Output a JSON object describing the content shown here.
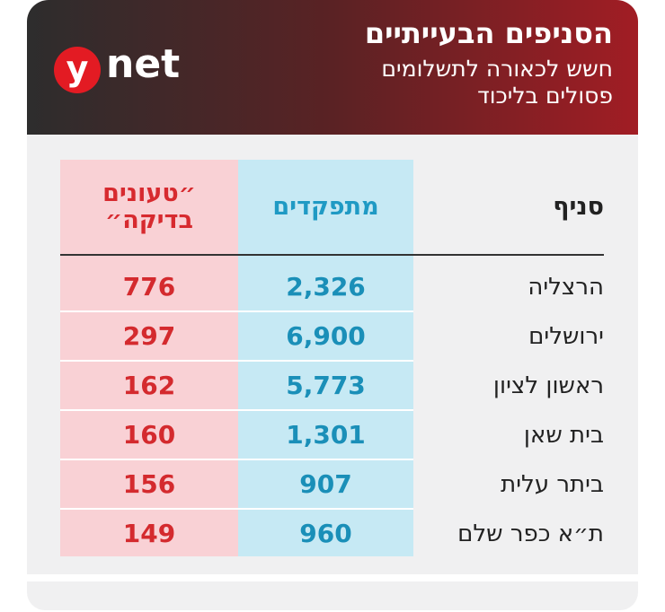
{
  "header": {
    "title": "הסניפים הבעייתיים",
    "subtitle": [
      "חשש לכאורה לתשלומים",
      "פסולים בליכוד"
    ],
    "logo": {
      "mark": "y",
      "text": "net"
    }
  },
  "table": {
    "columns": [
      "סניף",
      "מתפקדים",
      "״טעונים בדיקה״"
    ],
    "rows": [
      [
        "הרצליה",
        "2,326",
        "776"
      ],
      [
        "ירושלים",
        "6,900",
        "297"
      ],
      [
        "ראשון לציון",
        "5,773",
        "162"
      ],
      [
        "בית שאן",
        "1,301",
        "160"
      ],
      [
        "ביתר עלית",
        "907",
        "156"
      ],
      [
        "ת״א כפר שלם",
        "960",
        "149"
      ]
    ]
  }
}
